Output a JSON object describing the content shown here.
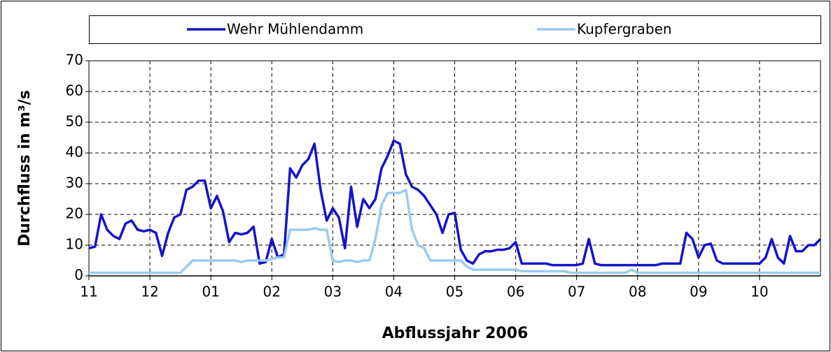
{
  "chart_data": {
    "type": "line",
    "x_title": "Abflussjahr 2006",
    "y_title": "Durchfluss in m³/s",
    "legend": "top",
    "grid": true,
    "xlim": [
      0,
      12
    ],
    "xticks": [
      {
        "value": 0,
        "label": "11"
      },
      {
        "value": 1,
        "label": "12"
      },
      {
        "value": 2,
        "label": "01"
      },
      {
        "value": 3,
        "label": "02"
      },
      {
        "value": 4,
        "label": "03"
      },
      {
        "value": 5,
        "label": "04"
      },
      {
        "value": 6,
        "label": "05"
      },
      {
        "value": 7,
        "label": "06"
      },
      {
        "value": 8,
        "label": "07"
      },
      {
        "value": 9,
        "label": "08"
      },
      {
        "value": 10,
        "label": "09"
      },
      {
        "value": 11,
        "label": "10"
      }
    ],
    "ylim": [
      0,
      70
    ],
    "yticks": [
      0,
      10,
      20,
      30,
      40,
      50,
      60,
      70
    ],
    "x": [
      0,
      0.1,
      0.2,
      0.3,
      0.4,
      0.5,
      0.6,
      0.7,
      0.8,
      0.9,
      1,
      1.1,
      1.2,
      1.3,
      1.4,
      1.5,
      1.6,
      1.7,
      1.8,
      1.9,
      2,
      2.1,
      2.2,
      2.3,
      2.4,
      2.5,
      2.6,
      2.7,
      2.8,
      2.9,
      3,
      3.1,
      3.2,
      3.3,
      3.4,
      3.5,
      3.6,
      3.7,
      3.8,
      3.9,
      4,
      4.1,
      4.2,
      4.3,
      4.4,
      4.5,
      4.6,
      4.7,
      4.8,
      4.9,
      5,
      5.1,
      5.2,
      5.3,
      5.4,
      5.5,
      5.6,
      5.7,
      5.8,
      5.9,
      6,
      6.1,
      6.2,
      6.3,
      6.4,
      6.5,
      6.6,
      6.7,
      6.8,
      6.9,
      7,
      7.1,
      7.2,
      7.3,
      7.4,
      7.5,
      7.6,
      7.7,
      7.8,
      7.9,
      8,
      8.1,
      8.2,
      8.3,
      8.4,
      8.5,
      8.6,
      8.7,
      8.8,
      8.9,
      9,
      9.1,
      9.2,
      9.3,
      9.4,
      9.5,
      9.6,
      9.7,
      9.8,
      9.9,
      10,
      10.1,
      10.2,
      10.3,
      10.4,
      10.5,
      10.6,
      10.7,
      10.8,
      10.9,
      11,
      11.1,
      11.2,
      11.3,
      11.4,
      11.5,
      11.6,
      11.7,
      11.8,
      11.9,
      12
    ],
    "series": [
      {
        "name": "Wehr Mühlendamm",
        "color": "#1414c8",
        "values": [
          9,
          9.5,
          20,
          15,
          13,
          12,
          17,
          18,
          15,
          14.5,
          15,
          14,
          6.5,
          14,
          19,
          20,
          28,
          29,
          31,
          31,
          22,
          26,
          21,
          11,
          14,
          13.5,
          14,
          16,
          4,
          4.5,
          12,
          6,
          7,
          35,
          32,
          36,
          38,
          43,
          28,
          18,
          22,
          19,
          9,
          29,
          16,
          25,
          22,
          25,
          35,
          39,
          44,
          43,
          33,
          29,
          28,
          26,
          23,
          20,
          14,
          20,
          20.5,
          8.5,
          5,
          4,
          7,
          8,
          8,
          8.5,
          8.5,
          9,
          11,
          4,
          4,
          4,
          4,
          4,
          3.5,
          3.5,
          3.5,
          3.5,
          3.5,
          4,
          12,
          4,
          3.5,
          3.5,
          3.5,
          3.5,
          3.5,
          3.5,
          3.5,
          3.5,
          3.5,
          3.5,
          4,
          4,
          4,
          4,
          14,
          12,
          6,
          10,
          10.5,
          5,
          4,
          4,
          4,
          4,
          4,
          4,
          4,
          6,
          12,
          6,
          4,
          13,
          8,
          8,
          10,
          10,
          12
        ]
      },
      {
        "name": "Kupfergraben",
        "color": "#99ccee",
        "values": [
          1,
          1,
          1,
          1,
          1,
          1,
          1,
          1,
          1,
          1,
          1,
          1,
          1,
          1,
          1,
          1,
          3,
          5,
          5,
          5,
          5,
          5,
          5,
          5,
          5,
          4.5,
          5,
          5,
          5,
          5,
          5.5,
          6,
          6,
          15,
          15,
          15,
          15,
          15.5,
          15,
          15,
          5,
          4.5,
          5,
          5,
          4.5,
          5,
          5,
          12,
          23,
          27,
          27,
          27,
          28,
          15,
          10,
          9,
          5,
          5,
          5,
          5,
          5,
          5,
          3,
          2,
          2,
          2,
          2,
          2,
          2,
          2,
          2,
          1.5,
          1.5,
          1.5,
          1.5,
          1.5,
          1.5,
          1.5,
          1.5,
          1,
          1,
          1,
          1,
          1,
          1,
          1,
          1,
          1,
          1,
          2,
          1,
          1,
          1,
          1,
          1,
          1,
          1,
          1,
          1,
          1,
          1,
          1,
          1,
          1,
          1,
          1,
          1,
          1,
          1,
          1,
          1,
          1,
          1,
          1,
          1,
          1,
          1,
          1,
          1,
          1,
          1
        ]
      }
    ]
  }
}
